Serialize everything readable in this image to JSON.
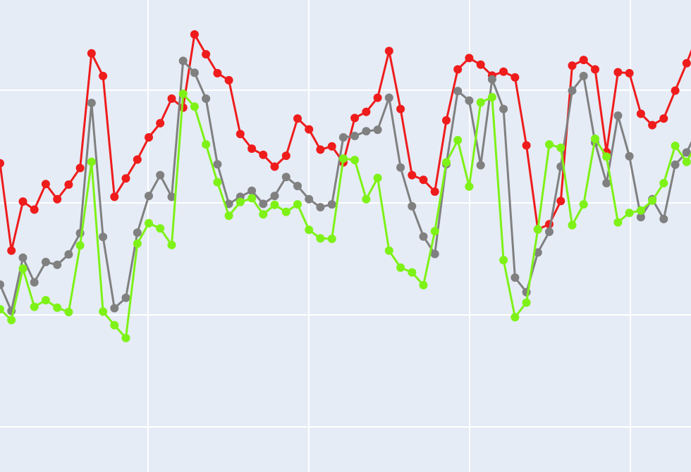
{
  "chart_data": {
    "type": "line",
    "title": "",
    "xlabel": "",
    "ylabel": "",
    "grid": true,
    "legend": "none",
    "x": [
      0,
      1,
      2,
      3,
      4,
      5,
      6,
      7,
      8,
      9,
      10,
      11,
      12,
      13,
      14,
      15,
      16,
      17,
      18,
      19,
      20,
      21,
      22,
      23,
      24,
      25,
      26,
      27,
      28,
      29,
      30,
      31,
      32,
      33,
      34,
      35,
      36,
      37,
      38,
      39,
      40,
      41,
      42,
      43,
      44,
      45,
      46,
      47,
      48,
      49,
      50,
      51,
      52,
      53,
      54,
      55,
      56,
      57,
      58,
      59,
      60,
      61
    ],
    "xlim": [
      0,
      61
    ],
    "ylim": [
      0,
      100
    ],
    "colors": {
      "background": "#e5ecf6",
      "grid": "#ffffff"
    },
    "series": [
      {
        "color": "#ef1c1c",
        "values": [
          65.4,
          46.9,
          57.3,
          55.6,
          61.0,
          57.8,
          60.9,
          64.4,
          88.7,
          83.9,
          58.3,
          62.2,
          66.2,
          70.9,
          73.9,
          79.1,
          77.2,
          92.7,
          88.5,
          84.5,
          83.0,
          71.6,
          68.5,
          67.2,
          64.7,
          67.0,
          74.9,
          72.6,
          68.3,
          69.0,
          65.6,
          75.0,
          76.3,
          79.3,
          89.2,
          76.9,
          62.9,
          61.9,
          59.4,
          74.5,
          85.3,
          87.7,
          86.3,
          84.0,
          84.8,
          83.6,
          69.2,
          51.4,
          52.5,
          57.4,
          86.1,
          87.3,
          85.3,
          67.8,
          84.7,
          84.5,
          75.9,
          73.5,
          74.9,
          80.8,
          86.6,
          92.8
        ]
      },
      {
        "color": "#808080",
        "values": [
          39.7,
          34.1,
          45.4,
          40.2,
          44.5,
          43.9,
          46.1,
          50.6,
          78.2,
          49.8,
          34.7,
          36.9,
          50.7,
          58.5,
          62.9,
          58.3,
          87.1,
          84.6,
          79.1,
          65.2,
          56.8,
          58.3,
          59.6,
          56.8,
          58.5,
          62.5,
          60.6,
          57.8,
          56.1,
          56.7,
          70.9,
          71.2,
          72.2,
          72.5,
          79.3,
          64.5,
          56.3,
          49.9,
          46.2,
          65.2,
          80.7,
          78.7,
          65.0,
          83.2,
          76.9,
          41.2,
          38.1,
          46.5,
          50.9,
          64.7,
          80.8,
          83.9,
          69.8,
          61.2,
          75.5,
          66.9,
          54.0,
          57.8,
          53.6,
          65.1,
          67.7,
          72.7
        ]
      },
      {
        "color": "#7ef216",
        "values": [
          34.5,
          32.2,
          43.1,
          35.0,
          36.4,
          34.8,
          33.9,
          48.0,
          65.7,
          34.0,
          31.1,
          28.4,
          48.4,
          52.7,
          51.6,
          48.1,
          80.1,
          77.4,
          69.4,
          61.4,
          54.3,
          57.2,
          58.0,
          54.6,
          56.6,
          55.1,
          56.7,
          51.3,
          49.5,
          49.4,
          66.4,
          66.1,
          57.8,
          62.3,
          46.9,
          43.3,
          42.3,
          39.6,
          51.0,
          65.6,
          70.3,
          60.5,
          78.3,
          79.4,
          44.9,
          32.8,
          35.9,
          51.4,
          69.4,
          68.7,
          52.3,
          56.7,
          70.6,
          66.8,
          52.9,
          54.9,
          55.4,
          57.5,
          61.2,
          69.1,
          65.7,
          70.1
        ]
      }
    ]
  }
}
